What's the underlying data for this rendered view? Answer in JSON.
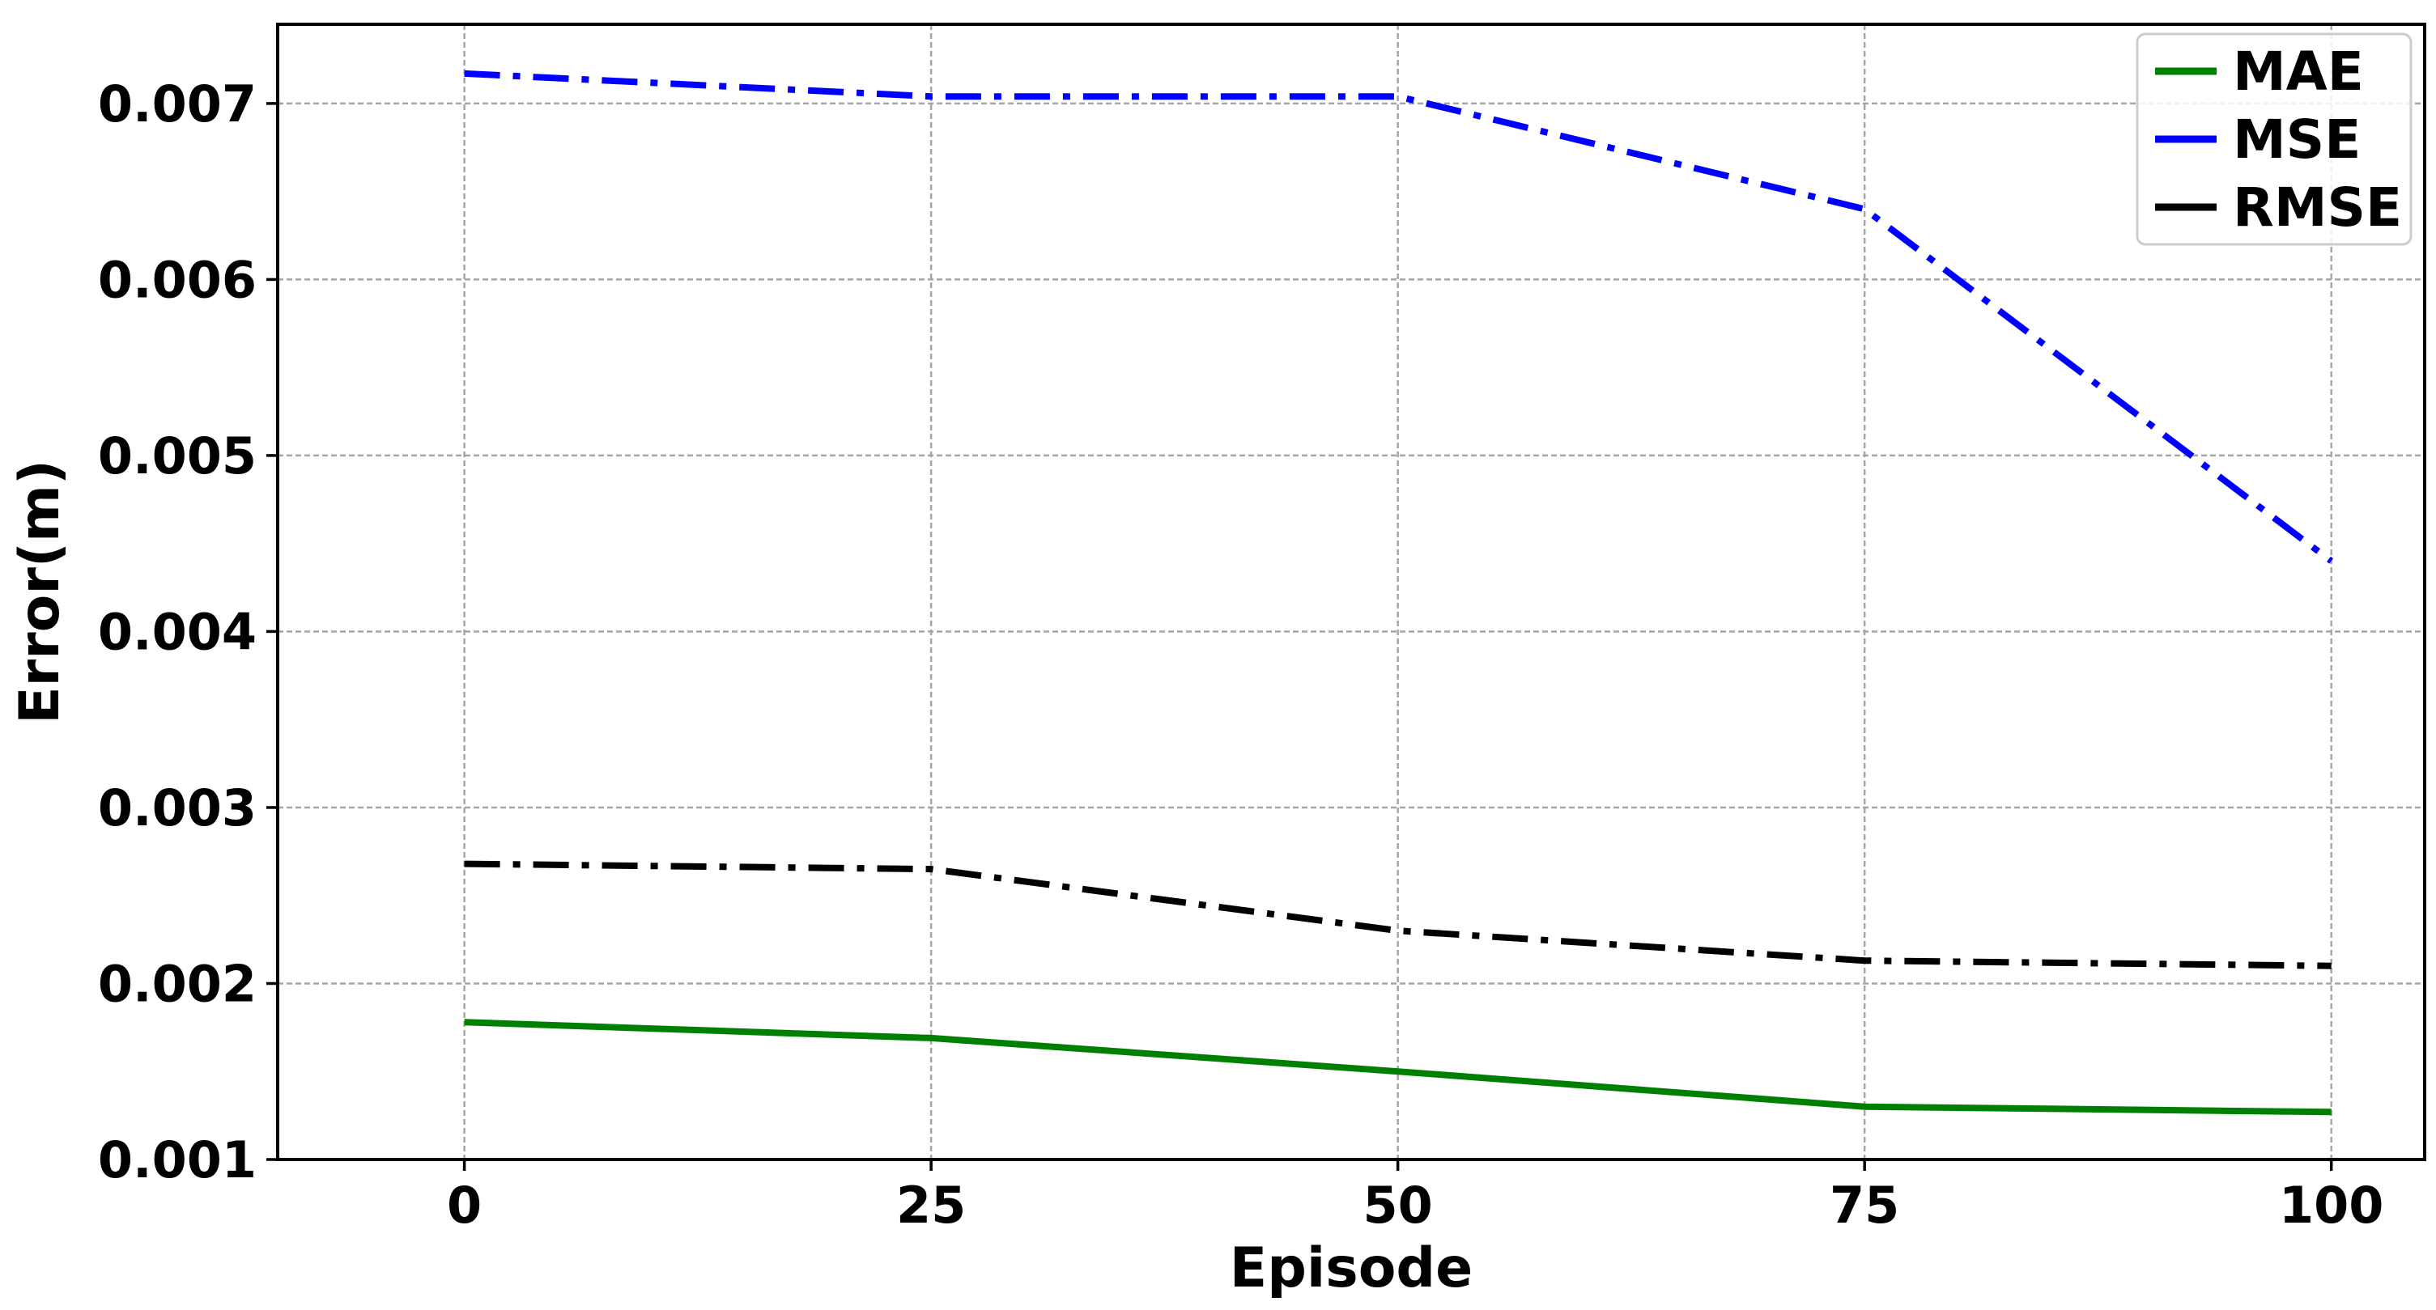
{
  "chart_data": {
    "type": "line",
    "title": "",
    "xlabel": "Episode",
    "ylabel": "Error(m)",
    "xlim": [
      -10,
      105
    ],
    "ylim": [
      0.001,
      0.00745
    ],
    "x_ticks": [
      0,
      25,
      50,
      75,
      100
    ],
    "x_tick_labels": [
      "0",
      "25",
      "50",
      "75",
      "100"
    ],
    "y_ticks": [
      0.001,
      0.002,
      0.003,
      0.004,
      0.005,
      0.006,
      0.007
    ],
    "y_tick_labels": [
      "0.001",
      "0.002",
      "0.003",
      "0.004",
      "0.005",
      "0.006",
      "0.007"
    ],
    "x": [
      0,
      25,
      50,
      75,
      100
    ],
    "series": [
      {
        "name": "MAE",
        "color": "#008000",
        "dash": "solid",
        "values": [
          0.00178,
          0.00169,
          0.0015,
          0.0013,
          0.00127
        ]
      },
      {
        "name": "MSE",
        "color": "#0000ff",
        "dash": "dashdot",
        "values": [
          0.00717,
          0.00704,
          0.00704,
          0.0064,
          0.0044
        ]
      },
      {
        "name": "RMSE",
        "color": "#000000",
        "dash": "dashdot",
        "values": [
          0.00268,
          0.00265,
          0.0023,
          0.00213,
          0.0021
        ]
      }
    ],
    "grid": true,
    "grid_style": "dashed",
    "legend_position": "top-right"
  }
}
